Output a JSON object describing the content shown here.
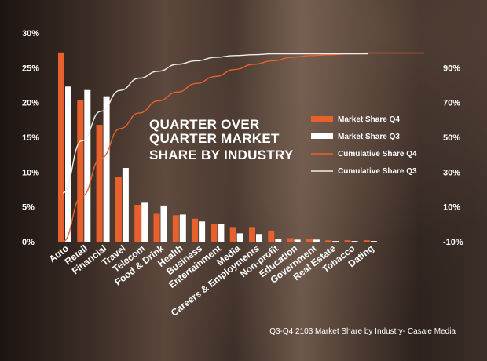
{
  "chart_data": {
    "type": "bar",
    "title": [
      "QUARTER OVER",
      "QUARTER MARKET",
      "SHARE BY INDUSTRY"
    ],
    "source": "Q3-Q4 2103 Market Share by Industry- Casale Media",
    "categories": [
      "Auto",
      "Retail",
      "Financial",
      "Travel",
      "Telecom",
      "Food & Drink",
      "Health",
      "Business",
      "Entertainment",
      "Media",
      "Careers & Employments",
      "Non-profit",
      "Education",
      "Government",
      "Real Estate",
      "Tobacco",
      "Dating"
    ],
    "series": [
      {
        "name": "Market Share Q4",
        "type": "bar",
        "axis": "left",
        "color": "#e8612c",
        "values": [
          27.2,
          20.3,
          16.8,
          9.3,
          5.3,
          4.0,
          3.8,
          3.3,
          2.5,
          2.1,
          2.1,
          1.6,
          0.5,
          0.4,
          0.2,
          0.2,
          0.2
        ]
      },
      {
        "name": "Market Share Q3",
        "type": "bar",
        "axis": "left",
        "color": "#ffffff",
        "values": [
          22.3,
          21.8,
          20.9,
          10.6,
          5.6,
          5.2,
          3.9,
          2.9,
          2.5,
          1.2,
          1.1,
          0.4,
          0.3,
          0.3,
          0.1,
          0.1,
          0.1
        ]
      },
      {
        "name": "Cumulative Share Q4",
        "type": "line",
        "axis": "right",
        "color": "#e8612c",
        "values": [
          -10,
          16,
          38,
          55,
          64,
          71,
          76,
          81,
          85,
          89,
          92,
          94,
          96,
          97,
          97.5,
          98,
          98.5
        ]
      },
      {
        "name": "Cumulative Share Q3",
        "type": "line",
        "axis": "right",
        "color": "#eeeeee",
        "values": [
          18,
          48,
          65,
          77,
          84,
          88,
          92,
          94,
          96,
          97,
          97.5,
          98,
          98,
          98,
          98,
          98,
          98
        ]
      }
    ],
    "y_left": {
      "ticks": [
        "0%",
        "5%",
        "10%",
        "15%",
        "20%",
        "25%",
        "30%"
      ],
      "ylim": [
        0,
        30
      ]
    },
    "y_right": {
      "ticks": [
        "-10%",
        "10%",
        "30%",
        "50%",
        "70%",
        "90%"
      ],
      "ylim": [
        -10,
        110
      ]
    },
    "legend": {
      "position": "right"
    },
    "grid": false
  }
}
